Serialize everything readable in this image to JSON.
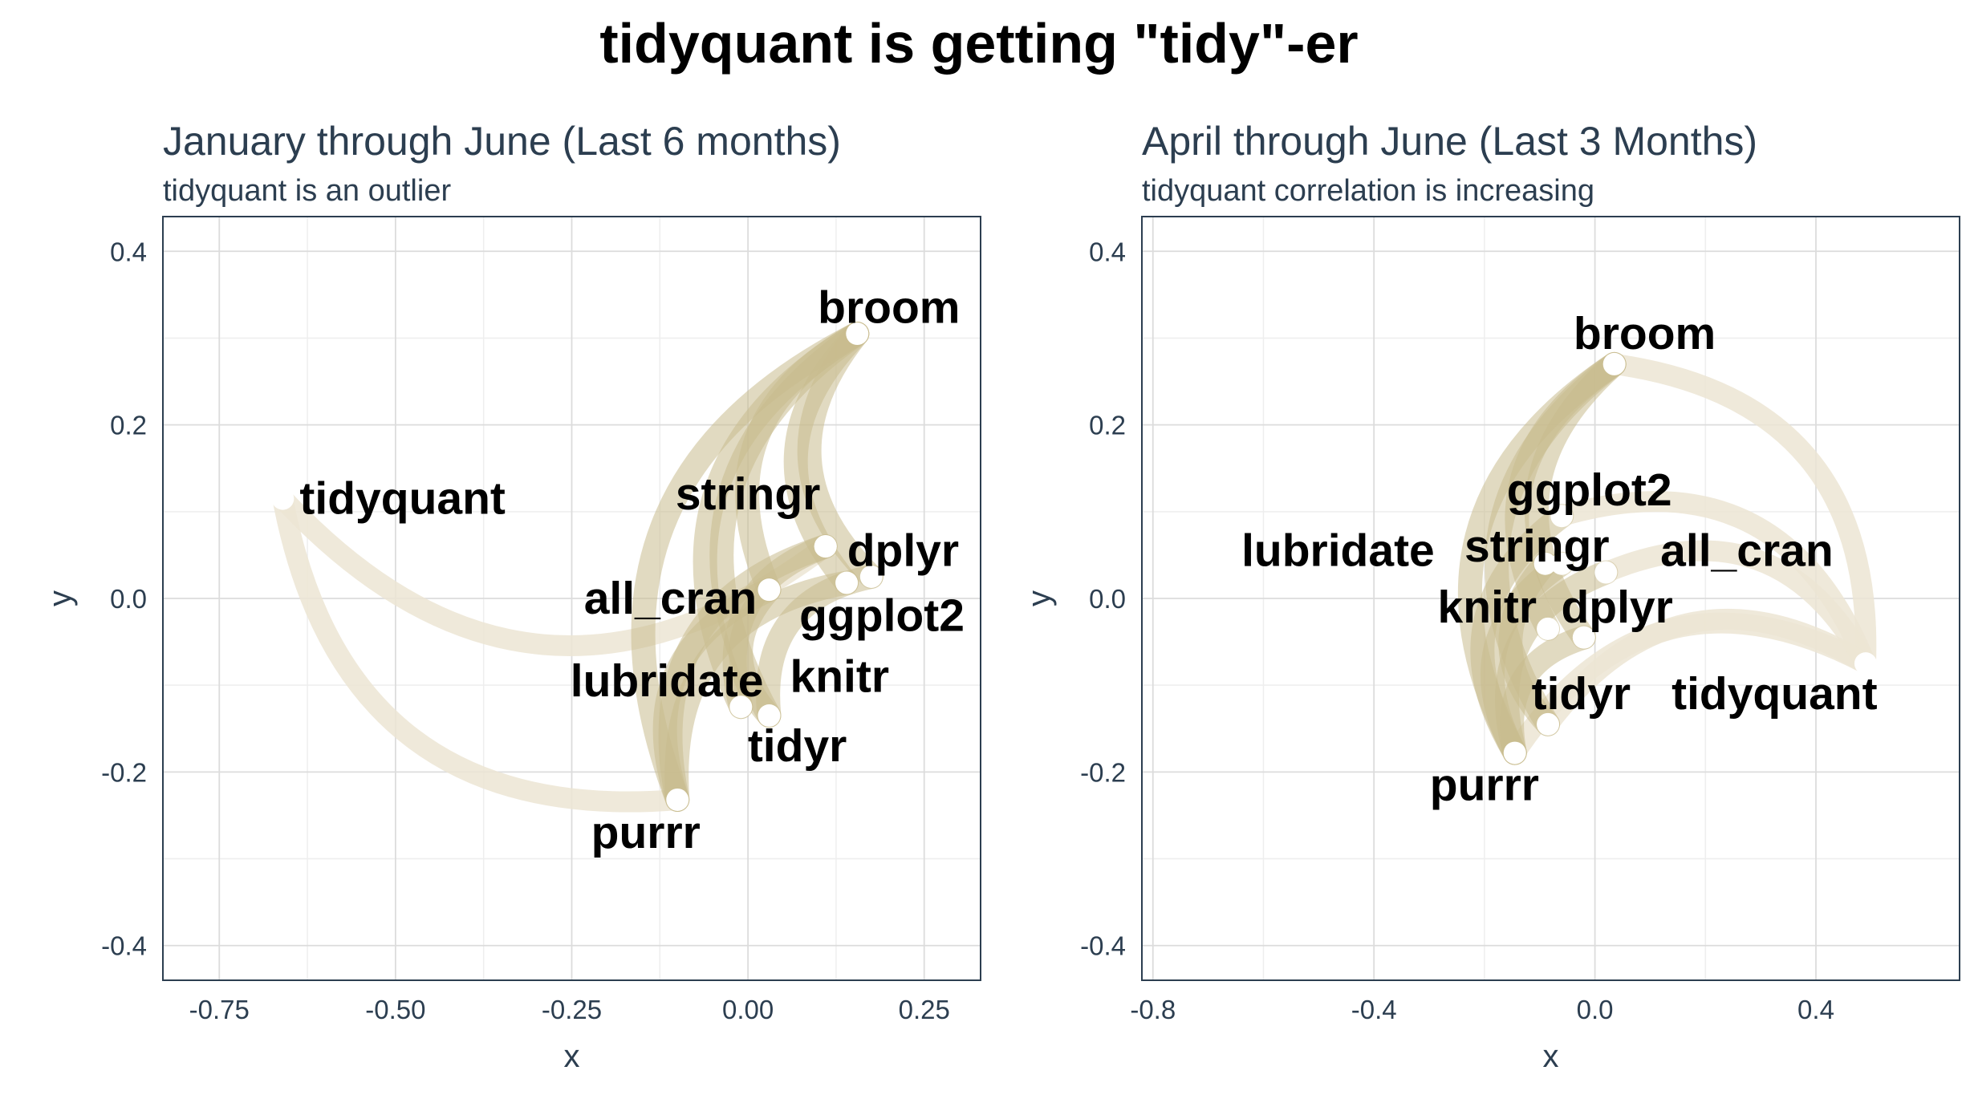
{
  "title": "tidyquant is getting \"tidy\"-er",
  "colors": {
    "edge": "#c9bb8e",
    "edge_faint": "#ece5d3",
    "node": "#ffffff",
    "text": "#2c3e50",
    "grid": "#dcdcdc",
    "border": "#2c3e50"
  },
  "chart_data": [
    {
      "type": "network",
      "title": "January through June (Last 6 months)",
      "subtitle": "tidyquant is an outlier",
      "xlabel": "x",
      "ylabel": "y",
      "xlim": [
        -0.83,
        0.33
      ],
      "ylim": [
        -0.44,
        0.44
      ],
      "xticks": [
        -0.75,
        -0.5,
        -0.25,
        0.0,
        0.25
      ],
      "xtick_labels": [
        "-0.75",
        "-0.50",
        "-0.25",
        "0.00",
        "0.25"
      ],
      "yticks": [
        -0.4,
        -0.2,
        0.0,
        0.2,
        0.4
      ],
      "ytick_labels": [
        "-0.4",
        "-0.2",
        "0.0",
        "0.2",
        "0.4"
      ],
      "grid": true,
      "nodes": [
        {
          "name": "broom",
          "x": 0.155,
          "y": 0.305,
          "label_x": 0.2,
          "label_y": 0.335
        },
        {
          "name": "tidyquant",
          "x": -0.66,
          "y": 0.115,
          "label_x": -0.49,
          "label_y": 0.115
        },
        {
          "name": "stringr",
          "x": 0.11,
          "y": 0.06,
          "label_x": 0.0,
          "label_y": 0.12
        },
        {
          "name": "dplyr",
          "x": 0.11,
          "y": 0.06,
          "label_x": 0.22,
          "label_y": 0.055
        },
        {
          "name": "all_cran",
          "x": 0.03,
          "y": 0.01,
          "label_x": -0.11,
          "label_y": 0.0
        },
        {
          "name": "ggplot2",
          "x": 0.175,
          "y": 0.025,
          "label_x": 0.19,
          "label_y": -0.02
        },
        {
          "name": "knitr",
          "x": 0.14,
          "y": 0.018,
          "label_x": 0.13,
          "label_y": -0.09
        },
        {
          "name": "lubridate",
          "x": -0.01,
          "y": -0.125,
          "label_x": -0.115,
          "label_y": -0.095
        },
        {
          "name": "tidyr",
          "x": 0.03,
          "y": -0.135,
          "label_x": 0.07,
          "label_y": -0.17
        },
        {
          "name": "purrr",
          "x": -0.1,
          "y": -0.232,
          "label_x": -0.145,
          "label_y": -0.27
        }
      ],
      "edges": [
        {
          "from": "tidyquant",
          "to": "purrr",
          "strength": "weak"
        },
        {
          "from": "tidyquant",
          "to": "dplyr",
          "strength": "weak"
        },
        {
          "from": "broom",
          "to": "purrr",
          "strength": "strong"
        },
        {
          "from": "broom",
          "to": "tidyr",
          "strength": "strong"
        },
        {
          "from": "broom",
          "to": "lubridate",
          "strength": "strong"
        },
        {
          "from": "broom",
          "to": "ggplot2",
          "strength": "strong"
        },
        {
          "from": "broom",
          "to": "knitr",
          "strength": "strong"
        },
        {
          "from": "broom",
          "to": "all_cran",
          "strength": "strong"
        },
        {
          "from": "dplyr",
          "to": "purrr",
          "strength": "strong"
        },
        {
          "from": "dplyr",
          "to": "lubridate",
          "strength": "strong"
        },
        {
          "from": "ggplot2",
          "to": "tidyr",
          "strength": "strong"
        },
        {
          "from": "all_cran",
          "to": "purrr",
          "strength": "strong"
        },
        {
          "from": "knitr",
          "to": "purrr",
          "strength": "strong"
        },
        {
          "from": "all_cran",
          "to": "tidyr",
          "strength": "strong"
        }
      ]
    },
    {
      "type": "network",
      "title": "April through June (Last 3 Months)",
      "subtitle": "tidyquant correlation is increasing",
      "xlabel": "x",
      "ylabel": "y",
      "xlim": [
        -0.82,
        0.66
      ],
      "ylim": [
        -0.44,
        0.44
      ],
      "xticks": [
        -0.8,
        -0.4,
        0.0,
        0.4
      ],
      "xtick_labels": [
        "-0.8",
        "-0.4",
        "0.0",
        "0.4"
      ],
      "yticks": [
        -0.4,
        -0.2,
        0.0,
        0.2,
        0.4
      ],
      "ytick_labels": [
        "-0.4",
        "-0.2",
        "0.0",
        "0.2",
        "0.4"
      ],
      "grid": true,
      "nodes": [
        {
          "name": "broom",
          "x": 0.035,
          "y": 0.27,
          "label_x": 0.09,
          "label_y": 0.305
        },
        {
          "name": "ggplot2",
          "x": -0.06,
          "y": 0.095,
          "label_x": -0.01,
          "label_y": 0.125
        },
        {
          "name": "lubridate",
          "x": -0.09,
          "y": 0.04,
          "label_x": -0.465,
          "label_y": 0.055
        },
        {
          "name": "stringr",
          "x": -0.06,
          "y": 0.04,
          "label_x": -0.105,
          "label_y": 0.06
        },
        {
          "name": "all_cran",
          "x": 0.02,
          "y": 0.03,
          "label_x": 0.275,
          "label_y": 0.055
        },
        {
          "name": "knitr",
          "x": -0.085,
          "y": -0.035,
          "label_x": -0.195,
          "label_y": -0.01
        },
        {
          "name": "dplyr",
          "x": -0.02,
          "y": -0.045,
          "label_x": 0.04,
          "label_y": -0.01
        },
        {
          "name": "tidyquant",
          "x": 0.49,
          "y": -0.075,
          "label_x": 0.325,
          "label_y": -0.11
        },
        {
          "name": "tidyr",
          "x": -0.085,
          "y": -0.145,
          "label_x": -0.025,
          "label_y": -0.11
        },
        {
          "name": "purrr",
          "x": -0.145,
          "y": -0.178,
          "label_x": -0.2,
          "label_y": -0.215
        }
      ],
      "edges": [
        {
          "from": "tidyquant",
          "to": "broom",
          "strength": "weak"
        },
        {
          "from": "tidyquant",
          "to": "ggplot2",
          "strength": "weak"
        },
        {
          "from": "tidyquant",
          "to": "purrr",
          "strength": "weak"
        },
        {
          "from": "tidyquant",
          "to": "tidyr",
          "strength": "weak"
        },
        {
          "from": "tidyquant",
          "to": "all_cran",
          "strength": "weak"
        },
        {
          "from": "broom",
          "to": "purrr",
          "strength": "strong"
        },
        {
          "from": "broom",
          "to": "tidyr",
          "strength": "strong"
        },
        {
          "from": "broom",
          "to": "knitr",
          "strength": "strong"
        },
        {
          "from": "broom",
          "to": "dplyr",
          "strength": "strong"
        },
        {
          "from": "ggplot2",
          "to": "purrr",
          "strength": "strong"
        },
        {
          "from": "stringr",
          "to": "purrr",
          "strength": "strong"
        },
        {
          "from": "all_cran",
          "to": "purrr",
          "strength": "strong"
        },
        {
          "from": "lubridate",
          "to": "tidyr",
          "strength": "strong"
        },
        {
          "from": "dplyr",
          "to": "purrr",
          "strength": "strong"
        }
      ]
    }
  ]
}
